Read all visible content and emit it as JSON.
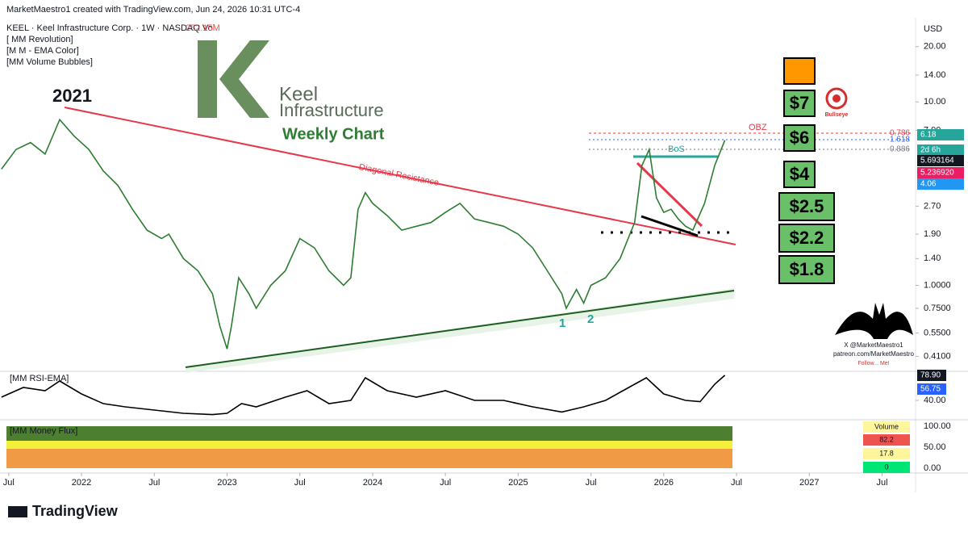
{
  "header": {
    "creator": "MarketMaestro1 created with TradingView.com, Jun 24, 2026 10:31 UTC-4",
    "symbol": "KEEL · Keel Infrastructure Corp. · 1W · NASDAQ  Vol",
    "volume": "252.15M",
    "indicators": [
      "[ MM Revolution]",
      "[M M - EMA Color]",
      "[MM Volume Bubbles]"
    ],
    "currency": "USD"
  },
  "logo": {
    "line1": "Keel",
    "line2": "Infrastructure",
    "subtitle": "Weekly Chart"
  },
  "chart_data": [
    {
      "type": "line",
      "log_scale": true,
      "color": "#2e7d32",
      "x": [
        2021.45,
        2021.55,
        2021.65,
        2021.75,
        2021.85,
        2021.95,
        2022.05,
        2022.15,
        2022.25,
        2022.35,
        2022.45,
        2022.55,
        2022.6,
        2022.7,
        2022.8,
        2022.9,
        2022.95,
        2023.0,
        2023.03,
        2023.08,
        2023.15,
        2023.2,
        2023.3,
        2023.4,
        2023.5,
        2023.6,
        2023.7,
        2023.8,
        2023.85,
        2023.9,
        2023.95,
        2024.0,
        2024.1,
        2024.2,
        2024.3,
        2024.4,
        2024.5,
        2024.6,
        2024.7,
        2024.8,
        2024.9,
        2025.0,
        2025.1,
        2025.2,
        2025.3,
        2025.33,
        2025.4,
        2025.45,
        2025.5,
        2025.6,
        2025.7,
        2025.8,
        2025.85,
        2025.9,
        2025.95,
        2026.0,
        2026.05,
        2026.1,
        2026.15,
        2026.2,
        2026.28,
        2026.35,
        2026.42
      ],
      "values": [
        4.3,
        5.5,
        6.0,
        5.2,
        8.0,
        6.5,
        5.5,
        4.2,
        3.5,
        2.6,
        2.0,
        1.8,
        1.9,
        1.4,
        1.2,
        0.9,
        0.6,
        0.45,
        0.6,
        1.1,
        0.9,
        0.75,
        1.0,
        1.2,
        1.8,
        1.6,
        1.2,
        1.0,
        1.1,
        2.6,
        3.2,
        2.8,
        2.4,
        2.0,
        2.1,
        2.2,
        2.5,
        2.8,
        2.3,
        2.2,
        2.1,
        1.9,
        1.6,
        1.2,
        0.9,
        0.75,
        0.95,
        0.8,
        1.0,
        1.1,
        1.4,
        2.2,
        4.5,
        5.5,
        3.0,
        2.5,
        2.6,
        2.3,
        2.1,
        2.0,
        2.8,
        4.5,
        6.18
      ],
      "xlim": [
        2021.44,
        2027.73
      ],
      "ylim": [
        0.34,
        26.5
      ],
      "xticks": [
        {
          "value": 2021.5,
          "label": "Jul"
        },
        2022,
        {
          "value": 2022.5,
          "label": "Jul"
        },
        2023,
        {
          "value": 2023.5,
          "label": "Jul"
        },
        2024,
        {
          "value": 2024.5,
          "label": "Jul"
        },
        2025,
        {
          "value": 2025.5,
          "label": "Jul"
        },
        2026,
        {
          "value": 2026.5,
          "label": "Jul"
        },
        2027,
        {
          "value": 2027.5,
          "label": "Jul"
        }
      ],
      "yticks": [
        {
          "value": 20,
          "label": "20.00"
        },
        {
          "value": 14,
          "label": "14.00"
        },
        {
          "value": 10,
          "label": "10.00"
        },
        {
          "value": 7,
          "label": "7.00"
        },
        {
          "value": 2.7,
          "label": "2.70"
        },
        {
          "value": 1.9,
          "label": "1.90"
        },
        {
          "value": 1.4,
          "label": "1.40"
        },
        {
          "value": 1,
          "label": "1.0000"
        },
        {
          "value": 0.75,
          "label": "0.7500"
        },
        {
          "value": 0.55,
          "label": "0.5500"
        },
        {
          "value": 0.41,
          "label": "0.4100"
        }
      ],
      "annotations": {
        "year": "2021",
        "resistance": "Diagonal Resistance",
        "bos": "BoS",
        "obz": "OBZ",
        "fib": [
          "0.786",
          "1.618",
          "0.886"
        ],
        "lows": [
          "1",
          "2"
        ]
      },
      "price_labels": {
        "last": "6.18",
        "countdown": "2d 6h",
        "ema1": "5.693164",
        "ema2": "5.236920",
        "ema3": "4.06"
      }
    },
    {
      "type": "line",
      "title": "[MM RSI-EMA]",
      "color": "#000000",
      "x": [
        2021.45,
        2021.6,
        2021.75,
        2021.85,
        2022.0,
        2022.15,
        2022.3,
        2022.5,
        2022.7,
        2022.9,
        2023.0,
        2023.1,
        2023.2,
        2023.4,
        2023.55,
        2023.7,
        2023.85,
        2023.95,
        2024.1,
        2024.3,
        2024.5,
        2024.7,
        2024.9,
        2025.1,
        2025.3,
        2025.45,
        2025.6,
        2025.8,
        2025.88,
        2026.0,
        2026.15,
        2026.25,
        2026.35,
        2026.42
      ],
      "values": [
        45,
        60,
        55,
        70,
        50,
        35,
        30,
        25,
        20,
        18,
        20,
        35,
        30,
        45,
        55,
        35,
        40,
        75,
        55,
        45,
        55,
        40,
        40,
        30,
        22,
        30,
        40,
        65,
        75,
        50,
        40,
        38,
        65,
        78.9
      ],
      "xlim": [
        2021.44,
        2027.73
      ],
      "ylim": [
        12.5,
        82.5
      ],
      "yticks": [
        {
          "value": 40,
          "label": "40.00"
        }
      ],
      "annotations": {
        "last": "78.90",
        "ema": "56.75"
      }
    }
  ],
  "targets": [
    "$7",
    "$6",
    "$4",
    "$2.5",
    "$2.2",
    "$1.8"
  ],
  "bullseye": "Bullseye",
  "money_flux": {
    "title": "[MM Money Flux]",
    "axis": [
      "100.00",
      "50.00",
      "0.00"
    ],
    "table": [
      "Volume",
      "82.2",
      "17.8",
      "0"
    ]
  },
  "watermark": {
    "handle": "X @MarketMaestro1",
    "site": "patreon.com/MarketMaestro",
    "note": "Follow... Me!"
  },
  "footer": "TradingView"
}
